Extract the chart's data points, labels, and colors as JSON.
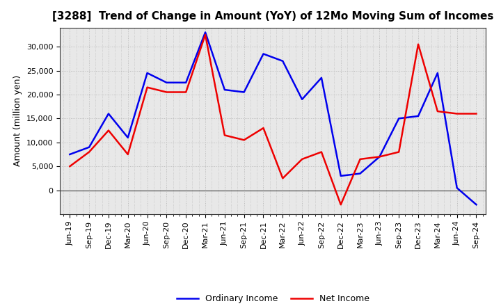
{
  "title": "[3288]  Trend of Change in Amount (YoY) of 12Mo Moving Sum of Incomes",
  "ylabel": "Amount (million yen)",
  "plot_bg_color": "#e8e8e8",
  "fig_bg_color": "#ffffff",
  "grid_color": "#bbbbbb",
  "x_labels": [
    "Jun-19",
    "Sep-19",
    "Dec-19",
    "Mar-20",
    "Jun-20",
    "Sep-20",
    "Dec-20",
    "Mar-21",
    "Jun-21",
    "Sep-21",
    "Dec-21",
    "Mar-22",
    "Jun-22",
    "Sep-22",
    "Dec-22",
    "Mar-23",
    "Jun-23",
    "Sep-23",
    "Dec-23",
    "Mar-24",
    "Jun-24",
    "Sep-24"
  ],
  "ordinary_income": [
    7500,
    9000,
    16000,
    11000,
    24500,
    22500,
    22500,
    33000,
    21000,
    20500,
    28500,
    27000,
    19000,
    23500,
    3000,
    3500,
    7000,
    15000,
    15500,
    24500,
    500,
    -3000
  ],
  "net_income": [
    5000,
    8000,
    12500,
    7500,
    21500,
    20500,
    20500,
    32500,
    11500,
    10500,
    13000,
    2500,
    6500,
    8000,
    -3000,
    6500,
    7000,
    8000,
    30500,
    16500,
    16000,
    16000
  ],
  "ordinary_color": "#0000ee",
  "net_color": "#ee0000",
  "ylim": [
    -5000,
    34000
  ],
  "yticks": [
    0,
    5000,
    10000,
    15000,
    20000,
    25000,
    30000
  ],
  "line_width": 1.8,
  "title_fontsize": 11,
  "tick_fontsize": 8,
  "ylabel_fontsize": 9,
  "legend_fontsize": 9
}
